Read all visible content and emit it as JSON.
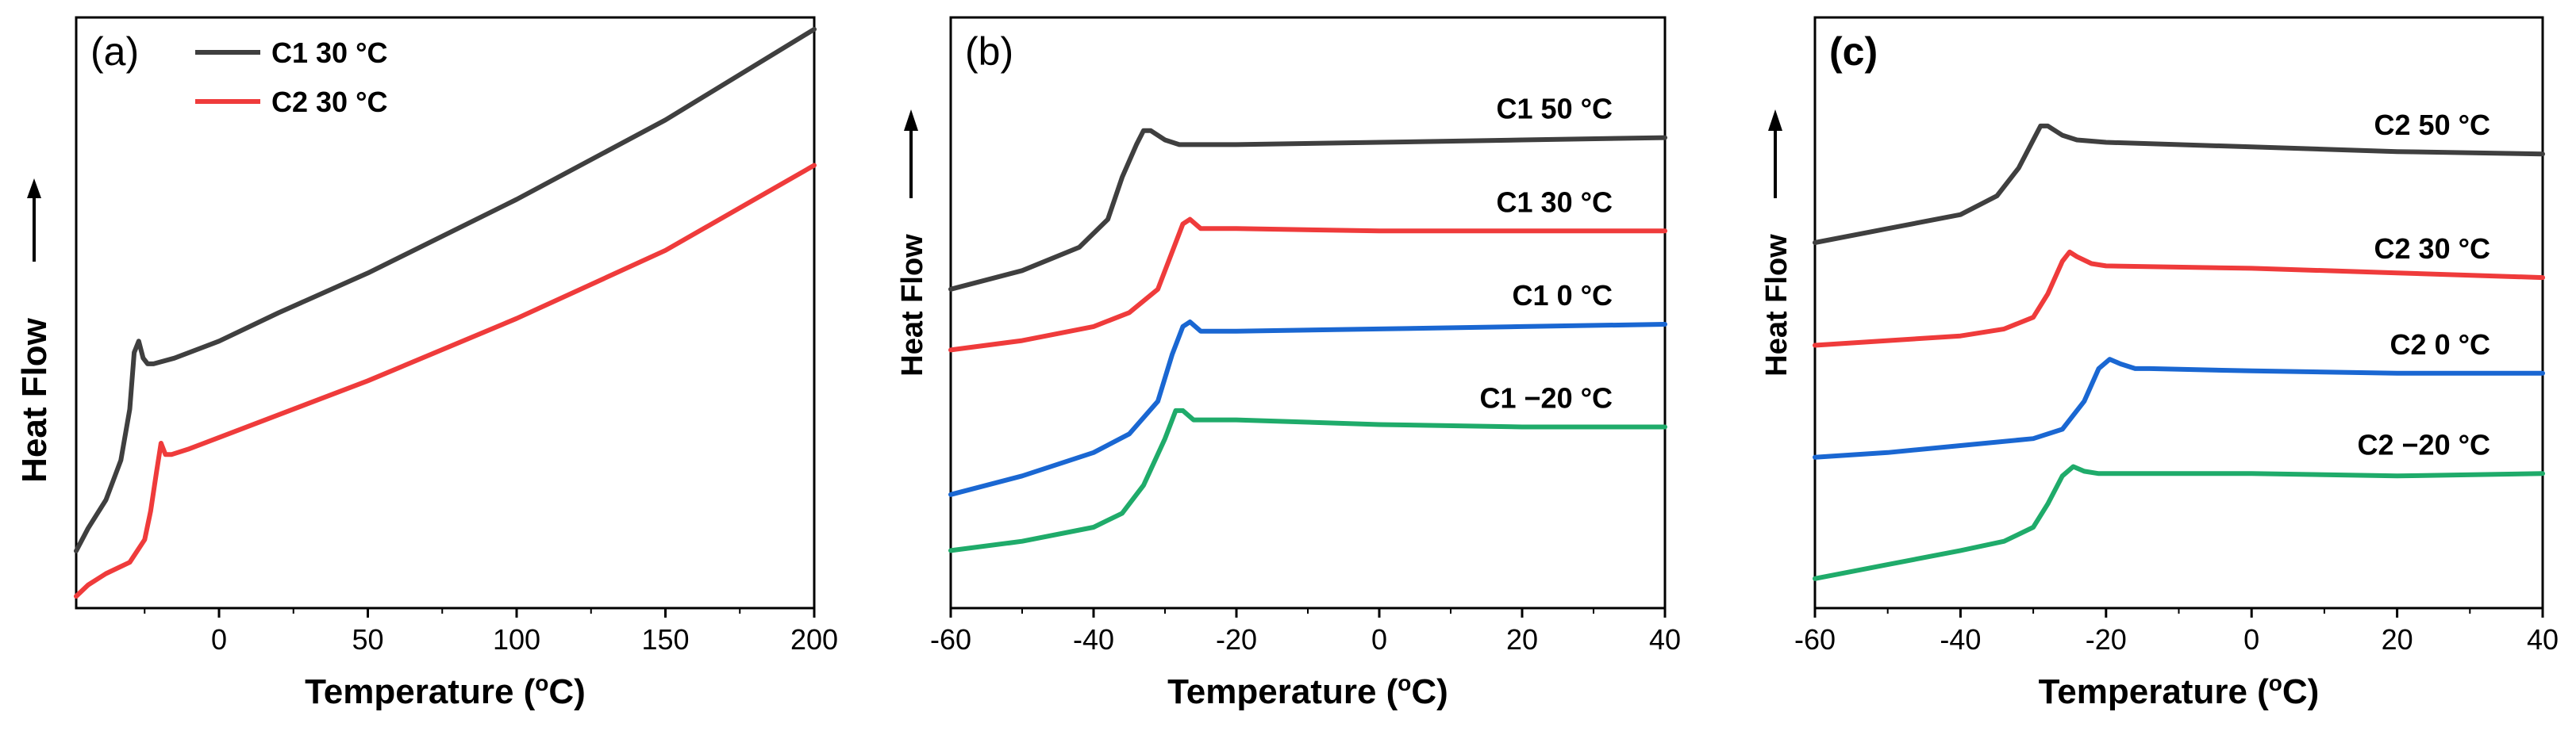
{
  "colors": {
    "gray": "#3f3f3f",
    "red": "#ef3b3b",
    "blue": "#1a67d2",
    "green": "#1fab6a",
    "axis": "#000000"
  },
  "icons": {
    "arrow": "up-arrow-icon"
  },
  "chart_data": [
    {
      "panel": "(a)",
      "type": "line",
      "title": "",
      "xlabel": "Temperature (",
      "xlabel_sup": "o",
      "xlabel_suffix": "C)",
      "ylabel": "Heat Flow",
      "xlim": [
        -48,
        200
      ],
      "xticks": [
        "0",
        "50",
        "100",
        "150",
        "200"
      ],
      "xtick_values": [
        0,
        50,
        100,
        150,
        200
      ],
      "legend": [
        "C1 30 °C",
        "C2 30 °C"
      ],
      "series": [
        {
          "name": "C1 30 °C",
          "color": "gray",
          "x": [
            -48,
            -44,
            -38,
            -33,
            -30,
            -28.5,
            -27,
            -25.5,
            -24,
            -22,
            -15,
            0,
            20,
            50,
            100,
            150,
            200
          ],
          "y": [
            0.08,
            0.12,
            0.17,
            0.24,
            0.33,
            0.43,
            0.45,
            0.42,
            0.41,
            0.41,
            0.42,
            0.45,
            0.5,
            0.57,
            0.7,
            0.84,
            1.0
          ]
        },
        {
          "name": "C2 30 °C",
          "color": "red",
          "x": [
            -48,
            -44,
            -38,
            -30,
            -25,
            -23,
            -21,
            -19.5,
            -18,
            -16,
            -10,
            0,
            20,
            50,
            100,
            150,
            200
          ],
          "y": [
            0.0,
            0.02,
            0.04,
            0.06,
            0.1,
            0.15,
            0.22,
            0.27,
            0.25,
            0.25,
            0.26,
            0.28,
            0.32,
            0.38,
            0.49,
            0.61,
            0.76
          ]
        }
      ]
    },
    {
      "panel": "(b)",
      "type": "line",
      "title": "",
      "xlabel": "Temperature (",
      "xlabel_sup": "o",
      "xlabel_suffix": "C)",
      "ylabel": "Heat Flow",
      "xlim": [
        -60,
        40
      ],
      "xticks": [
        "-60",
        "-40",
        "-20",
        "0",
        "20",
        "40"
      ],
      "xtick_values": [
        -60,
        -40,
        -20,
        0,
        20,
        40
      ],
      "series": [
        {
          "name": "C1 50 °C",
          "label": "C1 50 °C",
          "color": "gray",
          "x": [
            -60,
            -50,
            -42,
            -38,
            -36,
            -34,
            -33,
            -32,
            -30,
            -28,
            -20,
            0,
            20,
            40
          ],
          "y": [
            0.62,
            0.66,
            0.71,
            0.77,
            0.86,
            0.93,
            0.96,
            0.96,
            0.94,
            0.93,
            0.93,
            0.935,
            0.94,
            0.945
          ]
        },
        {
          "name": "C1 30 °C",
          "label": "C1 30 °C",
          "color": "red",
          "x": [
            -60,
            -50,
            -40,
            -35,
            -31,
            -29,
            -27.5,
            -26.5,
            -25,
            -23,
            -20,
            0,
            20,
            40
          ],
          "y": [
            0.49,
            0.51,
            0.54,
            0.57,
            0.62,
            0.7,
            0.76,
            0.77,
            0.75,
            0.75,
            0.75,
            0.745,
            0.745,
            0.745
          ]
        },
        {
          "name": "C1 0 °C",
          "label": "C1 0 °C",
          "color": "blue",
          "x": [
            -60,
            -50,
            -40,
            -35,
            -31,
            -29,
            -27.5,
            -26.5,
            -25,
            -23,
            -20,
            0,
            20,
            40
          ],
          "y": [
            0.18,
            0.22,
            0.27,
            0.31,
            0.38,
            0.48,
            0.54,
            0.55,
            0.53,
            0.53,
            0.53,
            0.535,
            0.54,
            0.545
          ]
        },
        {
          "name": "C1 −20 °C",
          "label": "C1 −20 °C",
          "color": "green",
          "x": [
            -60,
            -50,
            -40,
            -36,
            -33,
            -30,
            -28.5,
            -27.5,
            -26,
            -24,
            -20,
            0,
            20,
            40
          ],
          "y": [
            0.06,
            0.08,
            0.11,
            0.14,
            0.2,
            0.3,
            0.36,
            0.36,
            0.34,
            0.34,
            0.34,
            0.33,
            0.325,
            0.325
          ]
        }
      ]
    },
    {
      "panel": "(c)",
      "type": "line",
      "title": "",
      "xlabel": "Temperature (",
      "xlabel_sup": "o",
      "xlabel_suffix": "C)",
      "ylabel": "Heat Flow",
      "xlim": [
        -60,
        40
      ],
      "xticks": [
        "-60",
        "-40",
        "-20",
        "0",
        "20",
        "40"
      ],
      "xtick_values": [
        -60,
        -40,
        -20,
        0,
        20,
        40
      ],
      "series": [
        {
          "name": "C2 50 °C",
          "label": "C2 50 °C",
          "color": "gray",
          "x": [
            -60,
            -50,
            -40,
            -35,
            -32,
            -30,
            -29,
            -28,
            -26,
            -24,
            -20,
            0,
            20,
            40
          ],
          "y": [
            0.72,
            0.75,
            0.78,
            0.82,
            0.88,
            0.94,
            0.97,
            0.97,
            0.95,
            0.94,
            0.935,
            0.925,
            0.915,
            0.91
          ]
        },
        {
          "name": "C2 30 °C",
          "label": "C2 30 °C",
          "color": "red",
          "x": [
            -60,
            -50,
            -40,
            -34,
            -30,
            -28,
            -26,
            -25,
            -24,
            -22,
            -20,
            0,
            20,
            40
          ],
          "y": [
            0.5,
            0.51,
            0.52,
            0.535,
            0.56,
            0.61,
            0.68,
            0.7,
            0.69,
            0.675,
            0.67,
            0.665,
            0.655,
            0.645
          ]
        },
        {
          "name": "C2 0 °C",
          "label": "C2 0 °C",
          "color": "blue",
          "x": [
            -60,
            -50,
            -40,
            -30,
            -26,
            -23,
            -21,
            -19.5,
            -18,
            -16,
            -14,
            0,
            20,
            40
          ],
          "y": [
            0.26,
            0.27,
            0.285,
            0.3,
            0.32,
            0.38,
            0.45,
            0.47,
            0.46,
            0.45,
            0.45,
            0.445,
            0.44,
            0.44
          ]
        },
        {
          "name": "C2 −20 °C",
          "label": "C2 −20 °C",
          "color": "green",
          "x": [
            -60,
            -50,
            -40,
            -34,
            -30,
            -28,
            -26,
            -24.5,
            -23,
            -21,
            -18,
            0,
            20,
            40
          ],
          "y": [
            0.0,
            0.03,
            0.06,
            0.08,
            0.11,
            0.16,
            0.22,
            0.24,
            0.23,
            0.225,
            0.225,
            0.225,
            0.22,
            0.225
          ]
        }
      ]
    }
  ]
}
